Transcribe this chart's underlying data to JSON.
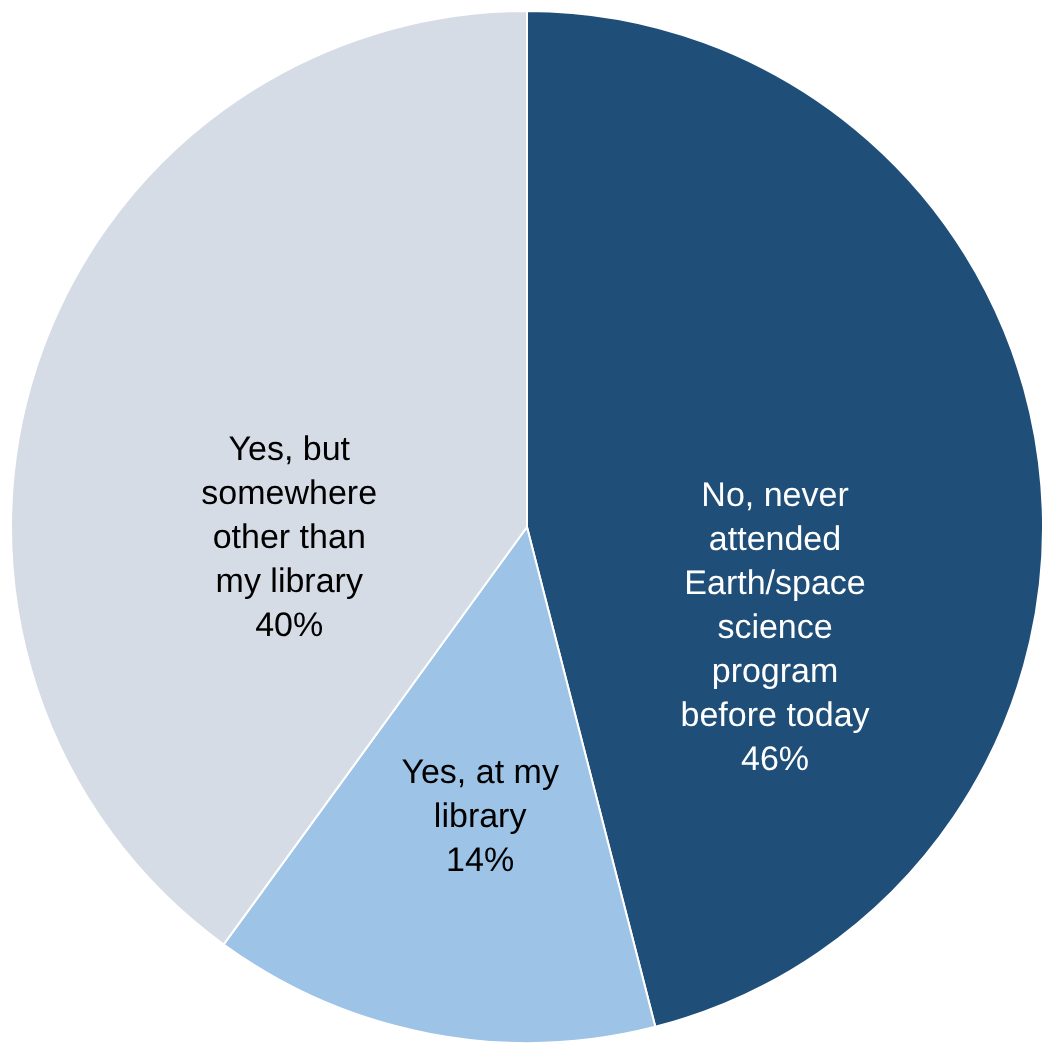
{
  "chart_data": {
    "type": "pie",
    "categories": [
      "No, never attended Earth/space science program before today",
      "Yes, at my library",
      "Yes, but somewhere other than my library"
    ],
    "values": [
      46,
      14,
      40
    ],
    "colors": [
      "#1f4e79",
      "#9dc3e6",
      "#d6dce5"
    ],
    "value_labels": [
      "46%",
      "14%",
      "40%"
    ]
  }
}
